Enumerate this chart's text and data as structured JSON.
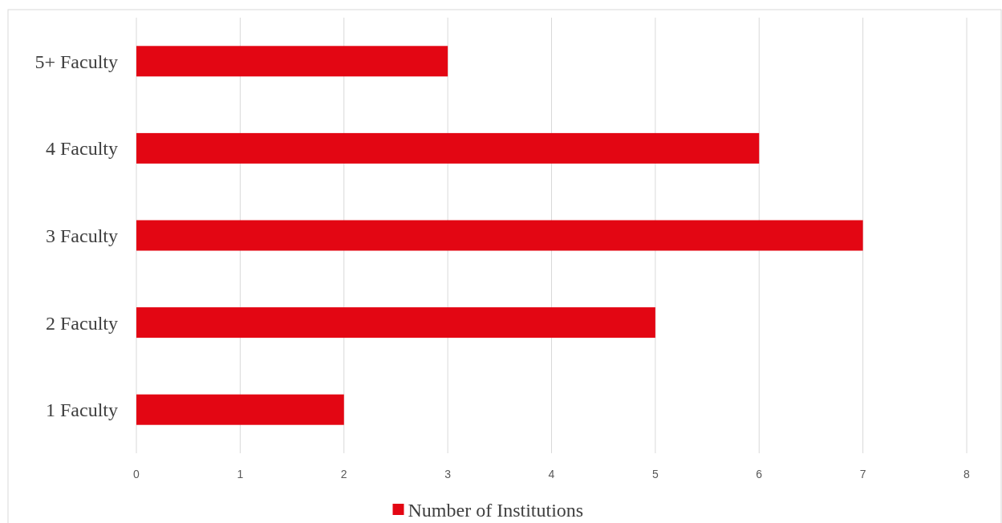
{
  "chart_data": {
    "type": "bar",
    "orientation": "horizontal",
    "categories": [
      "5+ Faculty",
      "4 Faculty",
      "3 Faculty",
      "2 Faculty",
      "1 Faculty"
    ],
    "series": [
      {
        "name": "Number of Institutions",
        "color": "#e30613",
        "values": [
          3,
          6,
          7,
          5,
          2
        ]
      }
    ],
    "xlim": [
      0,
      8
    ],
    "xticks": [
      0,
      1,
      2,
      3,
      4,
      5,
      6,
      7,
      8
    ],
    "grid": "x",
    "legend": "bottom"
  }
}
